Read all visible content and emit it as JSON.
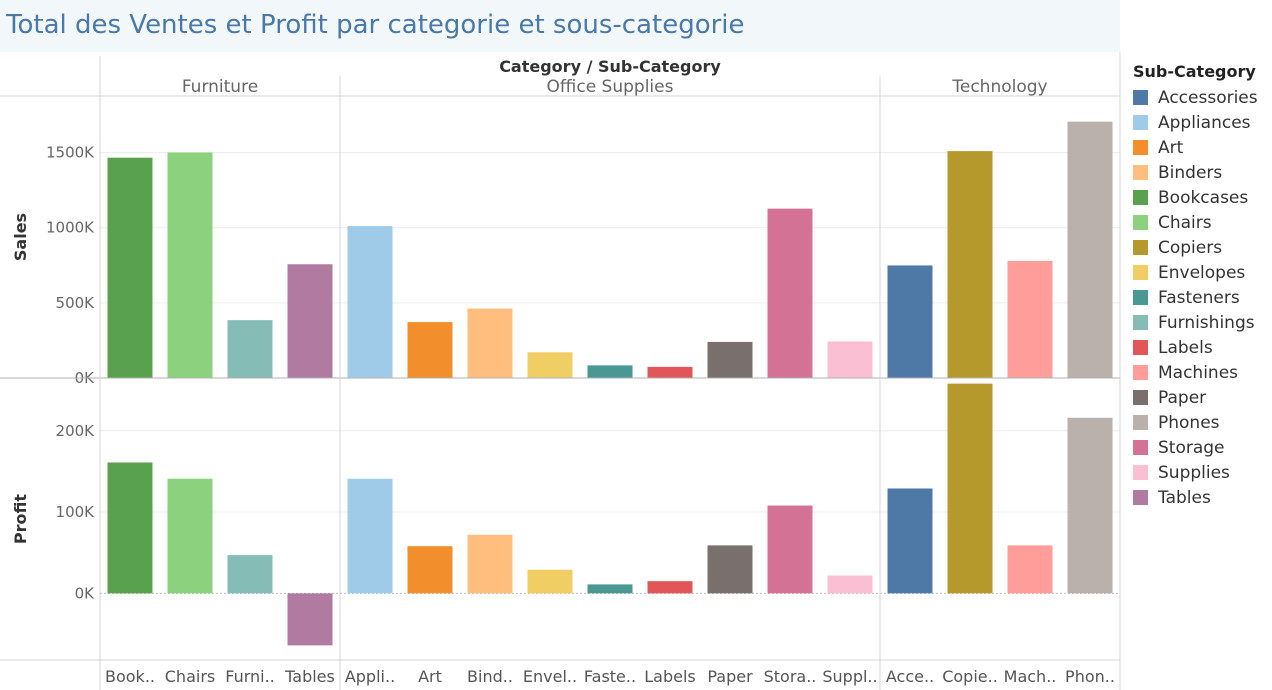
{
  "page": {
    "title": "Total des Ventes et Profit par categorie et sous-categorie"
  },
  "legend": {
    "title": "Sub-Category",
    "items": [
      {
        "label": "Accessories",
        "color": "#4e79a7"
      },
      {
        "label": "Appliances",
        "color": "#a0cbe8"
      },
      {
        "label": "Art",
        "color": "#f28e2b"
      },
      {
        "label": "Binders",
        "color": "#ffbe7d"
      },
      {
        "label": "Bookcases",
        "color": "#59a14f"
      },
      {
        "label": "Chairs",
        "color": "#8cd17d"
      },
      {
        "label": "Copiers",
        "color": "#b6992d"
      },
      {
        "label": "Envelopes",
        "color": "#f1ce63"
      },
      {
        "label": "Fasteners",
        "color": "#499894"
      },
      {
        "label": "Furnishings",
        "color": "#86bcb6"
      },
      {
        "label": "Labels",
        "color": "#e15759"
      },
      {
        "label": "Machines",
        "color": "#ff9d9a"
      },
      {
        "label": "Paper",
        "color": "#79706e"
      },
      {
        "label": "Phones",
        "color": "#bab0ac"
      },
      {
        "label": "Storage",
        "color": "#d37295"
      },
      {
        "label": "Supplies",
        "color": "#fabfd2"
      },
      {
        "label": "Tables",
        "color": "#b07aa1"
      }
    ]
  },
  "chart_data": {
    "type": "bar",
    "title": "Total des Ventes et Profit par categorie et sous-categorie",
    "header_label": "Category / Sub-Category",
    "categories": [
      {
        "name": "Furniture",
        "subcategories": [
          {
            "name": "Bookcases",
            "tick": "Book..",
            "sales": 1466000,
            "profit": 161000
          },
          {
            "name": "Chairs",
            "tick": "Chairs",
            "sales": 1501000,
            "profit": 141000
          },
          {
            "name": "Furnishings",
            "tick": "Furni..",
            "sales": 385000,
            "profit": 47000
          },
          {
            "name": "Tables",
            "tick": "Tables",
            "sales": 757000,
            "profit": -64000
          }
        ]
      },
      {
        "name": "Office Supplies",
        "subcategories": [
          {
            "name": "Appliances",
            "tick": "Appli..",
            "sales": 1011000,
            "profit": 141000
          },
          {
            "name": "Art",
            "tick": "Art",
            "sales": 372000,
            "profit": 58000
          },
          {
            "name": "Binders",
            "tick": "Bind..",
            "sales": 462000,
            "profit": 72000
          },
          {
            "name": "Envelopes",
            "tick": "Envel..",
            "sales": 171000,
            "profit": 29000
          },
          {
            "name": "Fasteners",
            "tick": "Faste..",
            "sales": 84000,
            "profit": 11000
          },
          {
            "name": "Labels",
            "tick": "Labels",
            "sales": 74000,
            "profit": 15000
          },
          {
            "name": "Paper",
            "tick": "Paper",
            "sales": 240000,
            "profit": 59000
          },
          {
            "name": "Storage",
            "tick": "Stora..",
            "sales": 1127000,
            "profit": 108000
          },
          {
            "name": "Supplies",
            "tick": "Suppl..",
            "sales": 243000,
            "profit": 22000
          }
        ]
      },
      {
        "name": "Technology",
        "subcategories": [
          {
            "name": "Accessories",
            "tick": "Acce..",
            "sales": 749000,
            "profit": 129000
          },
          {
            "name": "Copiers",
            "tick": "Copie..",
            "sales": 1510000,
            "profit": 258000
          },
          {
            "name": "Machines",
            "tick": "Mach..",
            "sales": 779000,
            "profit": 59000
          },
          {
            "name": "Phones",
            "tick": "Phon..",
            "sales": 1706000,
            "profit": 216000
          }
        ]
      }
    ],
    "rows": [
      {
        "measure": "sales",
        "label": "Sales",
        "ylim": [
          0,
          1850000
        ],
        "ticks": [
          {
            "value": 0,
            "label": "0K"
          },
          {
            "value": 500000,
            "label": "500K"
          },
          {
            "value": 1000000,
            "label": "1000K"
          },
          {
            "value": 1500000,
            "label": "1500K"
          }
        ]
      },
      {
        "measure": "profit",
        "label": "Profit",
        "ylim": [
          -82000,
          260000
        ],
        "ticks": [
          {
            "value": 0,
            "label": "0K"
          },
          {
            "value": 100000,
            "label": "100K"
          },
          {
            "value": 200000,
            "label": "200K"
          }
        ]
      }
    ],
    "grid": true,
    "legend_position": "right"
  }
}
